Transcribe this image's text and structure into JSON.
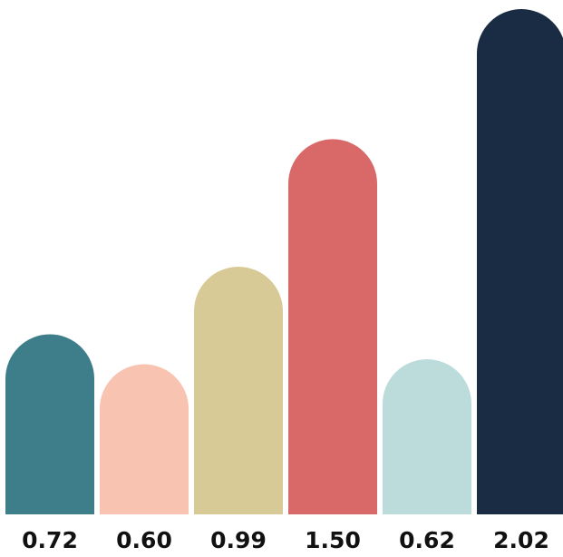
{
  "chart_data": {
    "type": "bar",
    "categories": [
      "",
      "",
      "",
      "",
      "",
      ""
    ],
    "values": [
      0.72,
      0.6,
      0.99,
      1.5,
      0.62,
      2.02
    ],
    "value_labels": [
      "0.72",
      "0.60",
      "0.99",
      "1.50",
      "0.62",
      "2.02"
    ],
    "colors": [
      "#3d7e8a",
      "#f8c3b1",
      "#d8ca96",
      "#d96968",
      "#bcdcdb",
      "#1a2c44"
    ],
    "title": "",
    "xlabel": "",
    "ylabel": "",
    "ylim": [
      0,
      2.02
    ],
    "grid": false,
    "legend": "none",
    "bar_style": "rounded-top"
  }
}
